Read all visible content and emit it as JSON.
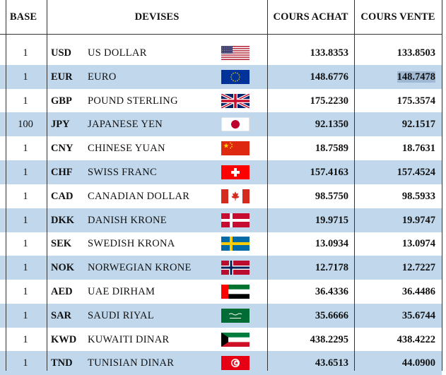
{
  "headers": {
    "base": "BASE",
    "devises": "DEVISES",
    "cours_achat": "COURS ACHAT",
    "cours_vente": "COURS VENTE"
  },
  "rows": [
    {
      "base": "1",
      "code": "USD",
      "name": "US DOLLAR",
      "flag": "us-flag-icon",
      "achat": "133.8353",
      "vente": "133.8503"
    },
    {
      "base": "1",
      "code": "EUR",
      "name": "EURO",
      "flag": "eu-flag-icon",
      "achat": "148.6776",
      "vente": "148.7478"
    },
    {
      "base": "1",
      "code": "GBP",
      "name": "POUND STERLING",
      "flag": "uk-flag-icon",
      "achat": "175.2230",
      "vente": "175.3574"
    },
    {
      "base": "100",
      "code": "JPY",
      "name": "JAPANESE YEN",
      "flag": "jp-flag-icon",
      "achat": "92.1350",
      "vente": "92.1517"
    },
    {
      "base": "1",
      "code": "CNY",
      "name": "CHINESE YUAN",
      "flag": "cn-flag-icon",
      "achat": "18.7589",
      "vente": "18.7631"
    },
    {
      "base": "1",
      "code": "CHF",
      "name": "SWISS FRANC",
      "flag": "ch-flag-icon",
      "achat": "157.4163",
      "vente": "157.4524"
    },
    {
      "base": "1",
      "code": "CAD",
      "name": "CANADIAN DOLLAR",
      "flag": "ca-flag-icon",
      "achat": "98.5750",
      "vente": "98.5933"
    },
    {
      "base": "1",
      "code": "DKK",
      "name": "DANISH KRONE",
      "flag": "dk-flag-icon",
      "achat": "19.9715",
      "vente": "19.9747"
    },
    {
      "base": "1",
      "code": "SEK",
      "name": "SWEDISH KRONA",
      "flag": "se-flag-icon",
      "achat": "13.0934",
      "vente": "13.0974"
    },
    {
      "base": "1",
      "code": "NOK",
      "name": "NORWEGIAN KRONE",
      "flag": "no-flag-icon",
      "achat": "12.7178",
      "vente": "12.7227"
    },
    {
      "base": "1",
      "code": "AED",
      "name": "UAE DIRHAM",
      "flag": "ae-flag-icon",
      "achat": "36.4336",
      "vente": "36.4486"
    },
    {
      "base": "1",
      "code": "SAR",
      "name": "SAUDI RIYAL",
      "flag": "sa-flag-icon",
      "achat": "35.6666",
      "vente": "35.6744"
    },
    {
      "base": "1",
      "code": "KWD",
      "name": "KUWAITI DINAR",
      "flag": "kw-flag-icon",
      "achat": "438.2295",
      "vente": "438.4222"
    },
    {
      "base": "1",
      "code": "TND",
      "name": "TUNISIAN DINAR",
      "flag": "tn-flag-icon",
      "achat": "43.6513",
      "vente": "44.0900"
    }
  ],
  "colors": {
    "shade": "#c0d7ec",
    "highlight": "#9fb8d4"
  }
}
